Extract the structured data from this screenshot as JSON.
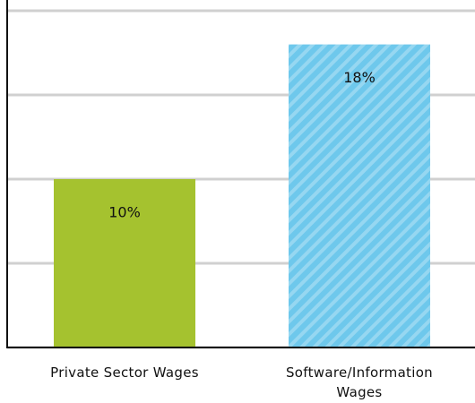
{
  "chart_data": {
    "type": "bar",
    "categories": [
      "Private Sector Wages",
      "Software/Information Wages"
    ],
    "values": [
      10,
      18
    ],
    "value_labels": [
      "10%",
      "18%"
    ],
    "colors": [
      "#a5c22f",
      "#6ec8ec"
    ],
    "hatched": [
      false,
      true
    ],
    "ylim": [
      0,
      20
    ],
    "yticks": [
      0,
      5,
      10,
      15,
      20
    ],
    "grid": true
  }
}
